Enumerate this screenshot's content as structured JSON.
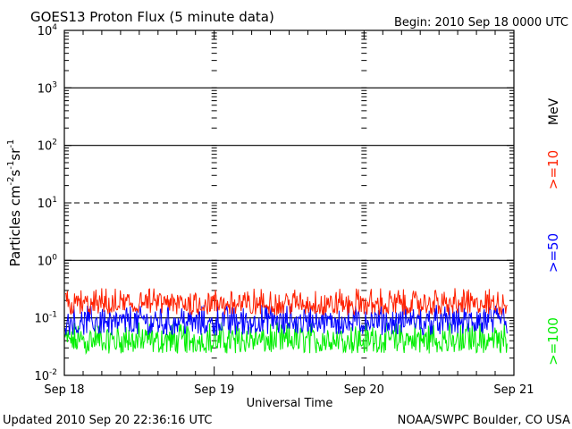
{
  "chart_data": {
    "type": "line",
    "title": "GOES13 Proton Flux (5 minute data)",
    "begin_label": "Begin: 2010 Sep 18 0000 UTC",
    "xlabel": "Universal Time",
    "ylabel_main": "Particles cm",
    "ylabel_exp1": "-2",
    "ylabel_s": "s",
    "ylabel_exp2": "-1",
    "ylabel_sr": "sr",
    "ylabel_exp3": "-1",
    "x_ticks": [
      "Sep 18",
      "Sep 19",
      "Sep 20",
      "Sep 21"
    ],
    "xlim": [
      "2010-09-18",
      "2010-09-21"
    ],
    "y_scale": "log",
    "ylim": [
      0.01,
      10000
    ],
    "y_ticks": [
      {
        "base": "10",
        "exp": "4",
        "value": 10000
      },
      {
        "base": "10",
        "exp": "3",
        "value": 1000
      },
      {
        "base": "10",
        "exp": "2",
        "value": 100
      },
      {
        "base": "10",
        "exp": "1",
        "value": 10
      },
      {
        "base": "10",
        "exp": "0",
        "value": 1
      },
      {
        "base": "10",
        "exp": "-1",
        "value": 0.1
      },
      {
        "base": "10",
        "exp": "-2",
        "value": 0.01
      }
    ],
    "reference_lines": [
      {
        "value": 1000,
        "style": "solid"
      },
      {
        "value": 100,
        "style": "solid"
      },
      {
        "value": 10,
        "style": "dashed"
      },
      {
        "value": 1,
        "style": "solid"
      },
      {
        "value": 0.1,
        "style": "solid"
      }
    ],
    "series": [
      {
        "name": ">=10",
        "color": "#ff2000",
        "typical": 0.17,
        "low": 0.11,
        "high": 0.33
      },
      {
        "name": ">=50",
        "color": "#0000ff",
        "typical": 0.085,
        "low": 0.05,
        "high": 0.17
      },
      {
        "name": ">=100",
        "color": "#00ee00",
        "typical": 0.04,
        "low": 0.024,
        "high": 0.085
      }
    ],
    "legend_unit": "MeV",
    "grid": false
  },
  "footer": {
    "updated": "Updated 2010 Sep 20 22:36:16 UTC",
    "credit": "NOAA/SWPC Boulder, CO USA"
  }
}
